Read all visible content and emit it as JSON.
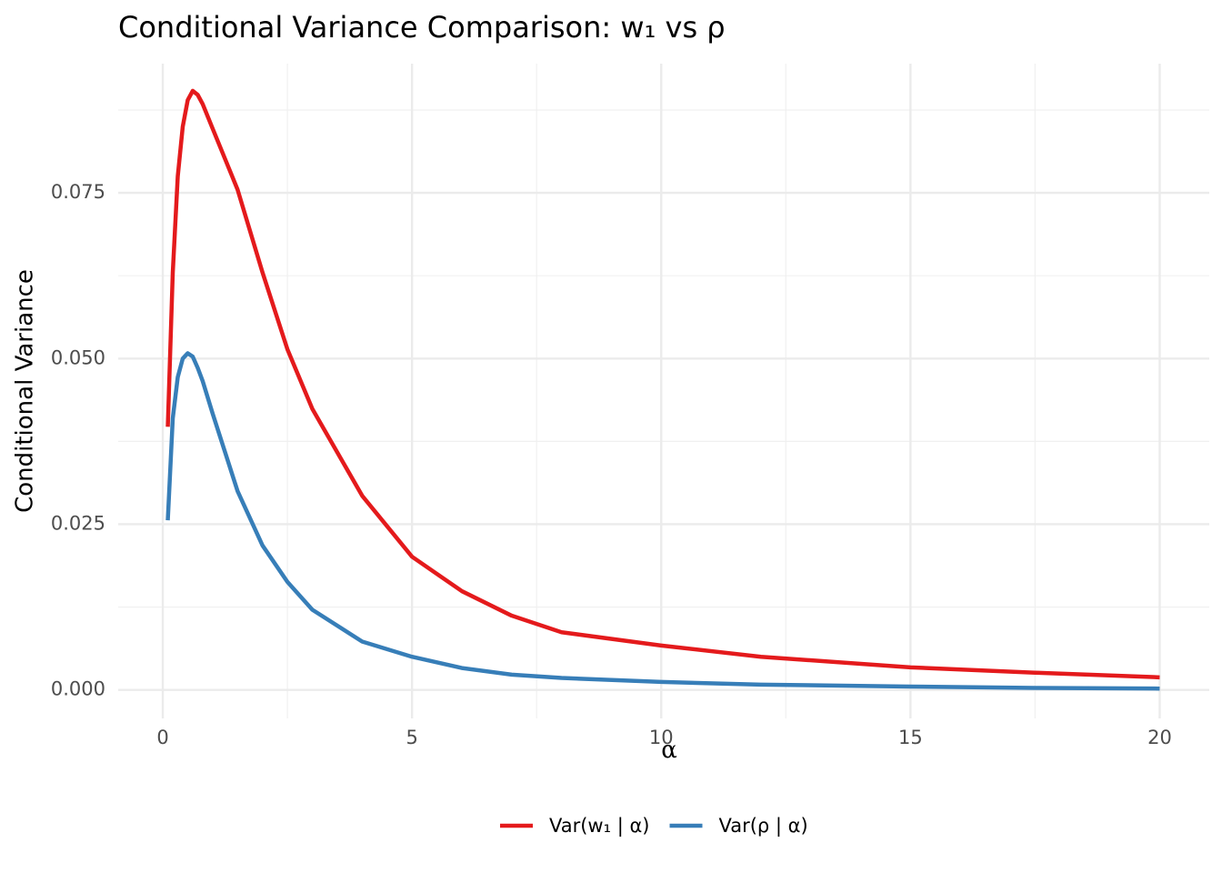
{
  "chart_data": {
    "type": "line",
    "title": "Conditional Variance Comparison: w₁ vs ρ",
    "x_label": "α",
    "y_label": "Conditional Variance",
    "x": [
      0.1,
      0.2,
      0.3,
      0.4,
      0.5,
      0.6,
      0.7,
      0.8,
      1,
      1.5,
      2,
      2.5,
      3,
      4,
      5,
      6,
      7,
      8,
      10,
      12,
      15,
      17.5,
      20
    ],
    "series": [
      {
        "name": "Var(w₁ | α)",
        "color": "#e41a1c",
        "values": [
          0.0397,
          0.063,
          0.0775,
          0.085,
          0.089,
          0.0904,
          0.0898,
          0.0884,
          0.0847,
          0.0755,
          0.063,
          0.0514,
          0.0424,
          0.0293,
          0.0201,
          0.0149,
          0.0112,
          0.0087,
          0.0067,
          0.005,
          0.0034,
          0.0026,
          0.0019
        ]
      },
      {
        "name": "Var(ρ | α)",
        "color": "#377eb8",
        "values": [
          0.0256,
          0.041,
          0.0472,
          0.05,
          0.0508,
          0.0503,
          0.0486,
          0.0466,
          0.0417,
          0.03,
          0.0218,
          0.0163,
          0.0121,
          0.0073,
          0.005,
          0.0033,
          0.0023,
          0.0018,
          0.0012,
          0.0008,
          0.0005,
          0.0003,
          0.0002
        ]
      }
    ],
    "xlim": [
      -0.895,
      20.995
    ],
    "ylim": [
      -0.0043,
      0.0945
    ],
    "xticks": [
      0,
      5,
      10,
      15,
      20
    ],
    "yticks": [
      {
        "value": 0,
        "label": "0.000"
      },
      {
        "value": 0.025,
        "label": "0.025"
      },
      {
        "value": 0.05,
        "label": "0.050"
      },
      {
        "value": 0.075,
        "label": "0.075"
      }
    ],
    "xminorticks": [
      2.5,
      7.5,
      12.5,
      17.5
    ],
    "yminorticks": [
      0.0125,
      0.0375,
      0.0625,
      0.0875
    ],
    "grid": true,
    "legend": "bottom"
  }
}
